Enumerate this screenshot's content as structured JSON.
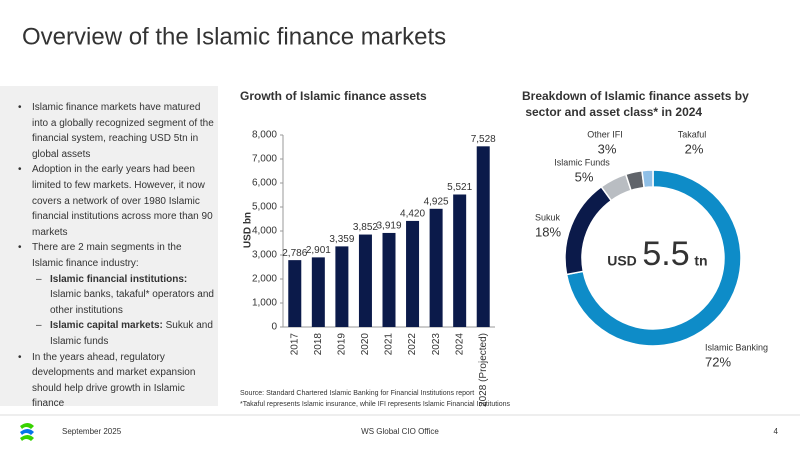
{
  "header": {
    "title": "Overview of the Islamic finance markets"
  },
  "bullets": [
    {
      "text": "Islamic finance markets have matured into a globally recognized segment of the financial system, reaching USD 5tn in global assets"
    },
    {
      "text": "Adoption in the early years had been limited to few markets. However, it now covers a network of over 1980 Islamic financial institutions across more than 90 markets"
    },
    {
      "text": "There are 2 main segments in the Islamic finance industry:",
      "sub": [
        {
          "bold": "Islamic financial institutions:",
          "text": "Islamic banks, takaful* operators and other institutions"
        },
        {
          "bold": "Islamic capital markets:",
          "text": "Sukuk and Islamic funds"
        }
      ]
    },
    {
      "text": "In the years ahead, regulatory developments and market expansion should help drive growth in Islamic finance"
    }
  ],
  "chart_data": [
    {
      "type": "bar",
      "title": "Growth of Islamic finance assets",
      "y_label": "USD bn",
      "color": "#0b1a4a",
      "categories": [
        "2017",
        "2018",
        "2019",
        "2020",
        "2021",
        "2022",
        "2023",
        "2024",
        "2028 (Projected)"
      ],
      "values": [
        2786,
        2901,
        3359,
        3852,
        3919,
        4420,
        4925,
        5521,
        7528
      ],
      "value_labels": [
        "2,786",
        "2,901",
        "3,359",
        "3,852",
        "3,919",
        "4,420",
        "4,925",
        "5,521",
        "7,528"
      ],
      "ylim": [
        0,
        8000
      ],
      "yticks": [
        0,
        {
          "value": 1000,
          "label": "1,000"
        },
        {
          "value": 2000,
          "label": "2,000"
        },
        {
          "value": 3000,
          "label": "3,000"
        },
        {
          "value": 4000,
          "label": "4,000"
        },
        {
          "value": 5000,
          "label": "5,000"
        },
        {
          "value": 6000,
          "label": "6,000"
        },
        {
          "value": 7000,
          "label": "7,000"
        },
        {
          "value": 8000,
          "label": "8,000"
        }
      ]
    },
    {
      "type": "pie",
      "title": "Breakdown of Islamic finance assets by sector and asset class* in 2024",
      "center_label": [
        "USD",
        "5.5",
        "tn"
      ],
      "categories": [
        "Islamic Banking",
        "Sukuk",
        "Islamic Funds",
        "Other IFI",
        "Takaful"
      ],
      "values": [
        72,
        18,
        5,
        3,
        2
      ],
      "value_labels": [
        "72%",
        "18%",
        "5%",
        "3%",
        "2%"
      ],
      "colors": [
        "#0e8cc8",
        "#0b1a4a",
        "#b9bdc2",
        "#60646a",
        "#8fbfe6"
      ]
    }
  ],
  "source": [
    "Source: Standard Chartered Islamic Banking for Financial Institutions report",
    "*Takaful represents Islamic insurance, while IFI represents Islamic Financial Institutions"
  ],
  "footer": {
    "date": "September 2025",
    "office": "WS Global CIO Office",
    "page": "4"
  }
}
